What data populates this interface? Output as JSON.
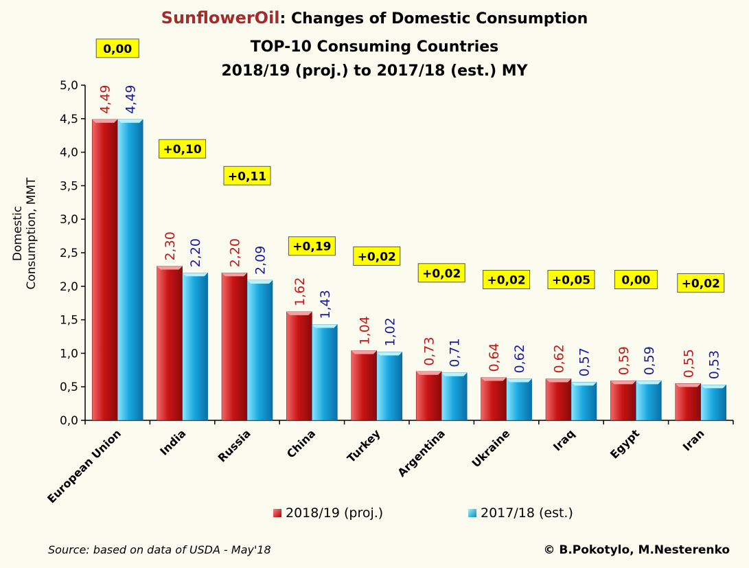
{
  "title": {
    "brand": "SunflowerOil",
    "line1_rest": ": Changes of Domestic Consumption",
    "line2": "TOP-10 Consuming Countries",
    "line3": "2018/19 (proj.) to 2017/18 (est.) MY"
  },
  "source_note": "Source: based on data of USDA - May'18",
  "credit": "© B.Pokotylo, M.Nesterenko",
  "colors": {
    "series1": "#c81414",
    "series2": "#1aa8e0",
    "change_box": "#ffff00",
    "label1": "#c81414",
    "label2": "#1a1aa0",
    "brand": "#a52a2a"
  },
  "chart_data": {
    "type": "bar",
    "title": "SunflowerOil: Changes of Domestic Consumption TOP-10 Consuming Countries 2018/19 (proj.) to 2017/18 (est.) MY",
    "xlabel": "",
    "ylabel": "Domestic Consumption, MMT",
    "ylim": [
      0,
      5
    ],
    "yticks": [
      "0,0",
      "0,5",
      "1,0",
      "1,5",
      "2,0",
      "2,5",
      "3,0",
      "3,5",
      "4,0",
      "4,5",
      "5,0"
    ],
    "categories": [
      "European Union",
      "India",
      "Russia",
      "China",
      "Turkey",
      "Argentina",
      "Ukraine",
      "Iraq",
      "Egypt",
      "Iran"
    ],
    "series": [
      {
        "name": "2018/19 (proj.)",
        "values": [
          4.49,
          2.3,
          2.2,
          1.62,
          1.04,
          0.73,
          0.64,
          0.62,
          0.59,
          0.55
        ],
        "labels": [
          "4,49",
          "2,30",
          "2,20",
          "1,62",
          "1,04",
          "0,73",
          "0,64",
          "0,62",
          "0,59",
          "0,55"
        ]
      },
      {
        "name": "2017/18 (est.)",
        "values": [
          4.49,
          2.2,
          2.09,
          1.43,
          1.02,
          0.71,
          0.62,
          0.57,
          0.59,
          0.53
        ],
        "labels": [
          "4,49",
          "2,20",
          "2,09",
          "1,43",
          "1,02",
          "0,71",
          "0,62",
          "0,57",
          "0,59",
          "0,53"
        ]
      }
    ],
    "changes": [
      "0,00",
      "+0,10",
      "+0,11",
      "+0,19",
      "+0,02",
      "+0,02",
      "+0,02",
      "+0,05",
      "0,00",
      "+0,02"
    ],
    "change_levels": [
      5.55,
      4.05,
      3.65,
      2.6,
      2.45,
      2.2,
      2.1,
      2.1,
      2.1,
      2.05
    ],
    "legend_position": "bottom",
    "grid": false
  }
}
